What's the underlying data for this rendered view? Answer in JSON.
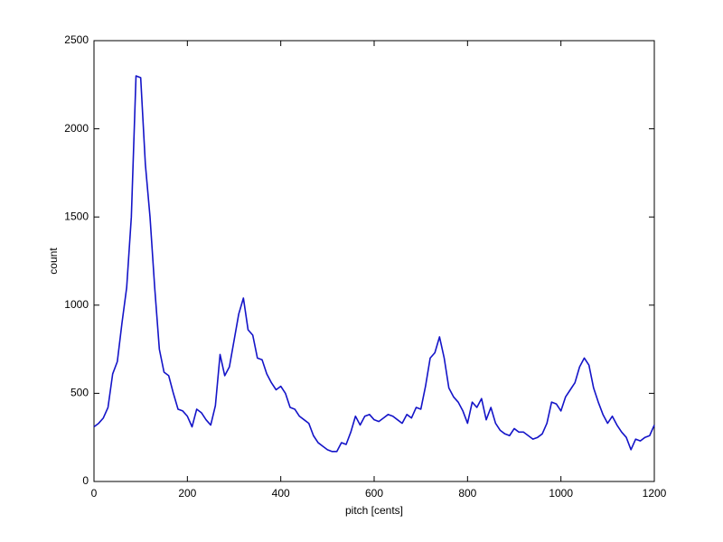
{
  "chart_data": {
    "type": "line",
    "xlabel": "pitch [cents]",
    "ylabel": "count",
    "x": [
      0,
      10,
      20,
      30,
      40,
      50,
      60,
      70,
      80,
      90,
      100,
      110,
      120,
      130,
      140,
      150,
      160,
      170,
      180,
      190,
      200,
      210,
      220,
      230,
      240,
      250,
      260,
      270,
      280,
      290,
      300,
      310,
      320,
      330,
      340,
      350,
      360,
      370,
      380,
      390,
      400,
      410,
      420,
      430,
      440,
      450,
      460,
      470,
      480,
      490,
      500,
      510,
      520,
      530,
      540,
      550,
      560,
      570,
      580,
      590,
      600,
      610,
      620,
      630,
      640,
      650,
      660,
      670,
      680,
      690,
      700,
      710,
      720,
      730,
      740,
      750,
      760,
      770,
      780,
      790,
      800,
      810,
      820,
      830,
      840,
      850,
      860,
      870,
      880,
      890,
      900,
      910,
      920,
      930,
      940,
      950,
      960,
      970,
      980,
      990,
      1000,
      1010,
      1020,
      1030,
      1040,
      1050,
      1060,
      1070,
      1080,
      1090,
      1100,
      1110,
      1120,
      1130,
      1140,
      1150,
      1160,
      1170,
      1180,
      1190,
      1200
    ],
    "values": [
      310,
      330,
      360,
      420,
      610,
      680,
      900,
      1100,
      1500,
      2300,
      2290,
      1800,
      1500,
      1100,
      750,
      620,
      600,
      500,
      410,
      400,
      370,
      310,
      410,
      390,
      350,
      320,
      430,
      720,
      600,
      650,
      800,
      950,
      1040,
      860,
      830,
      700,
      690,
      610,
      560,
      520,
      540,
      500,
      420,
      410,
      370,
      350,
      330,
      260,
      220,
      200,
      180,
      170,
      170,
      220,
      210,
      280,
      370,
      320,
      370,
      380,
      350,
      340,
      360,
      380,
      370,
      350,
      330,
      380,
      360,
      420,
      410,
      540,
      700,
      730,
      820,
      700,
      530,
      480,
      450,
      400,
      330,
      450,
      420,
      470,
      350,
      420,
      330,
      290,
      270,
      260,
      300,
      280,
      280,
      260,
      240,
      250,
      270,
      330,
      450,
      440,
      400,
      480,
      520,
      560,
      650,
      700,
      660,
      530,
      450,
      380,
      330,
      370,
      320,
      280,
      250,
      180,
      240,
      230,
      250,
      260,
      320
    ],
    "color": "#1414c8",
    "xlim": [
      0,
      1200
    ],
    "xticks": [
      0,
      200,
      400,
      600,
      800,
      1000,
      1200
    ],
    "ylim": [
      0,
      2500
    ],
    "yticks": [
      0,
      500,
      1000,
      1500,
      2000,
      2500
    ],
    "grid": false
  }
}
